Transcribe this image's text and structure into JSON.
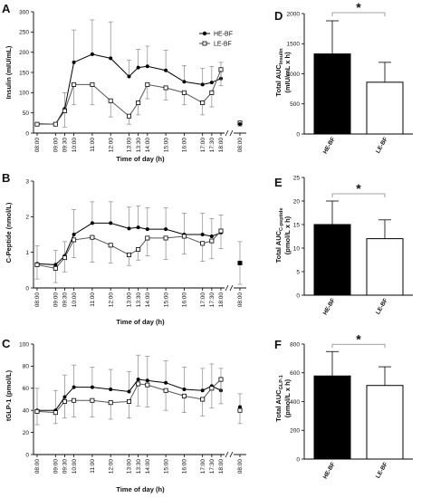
{
  "chart_data": [
    {
      "panel": "A",
      "type": "line",
      "xlabel": "Time of day (h)",
      "ylabel": "Insulin (mIU/mL)",
      "ylim": [
        0,
        300
      ],
      "yticks": [
        0,
        50,
        100,
        150,
        200,
        250,
        300
      ],
      "x": [
        "08:00",
        "09:00",
        "09:30",
        "10:00",
        "11:00",
        "12:00",
        "13:00",
        "13:30",
        "14:00",
        "15:00",
        "16:00",
        "17:00",
        "17:30",
        "18:00"
      ],
      "legend": [
        {
          "label": "HE-BF"
        },
        {
          "label": "LE-BF"
        }
      ],
      "series": [
        {
          "name": "HE-BF",
          "marker": "filled-circle",
          "values": [
            23,
            22,
            60,
            175,
            195,
            185,
            140,
            162,
            165,
            155,
            127,
            120,
            125,
            135
          ],
          "errors": [
            0,
            0,
            40,
            80,
            85,
            90,
            40,
            45,
            50,
            50,
            40,
            40,
            40,
            40
          ]
        },
        {
          "name": "LE-BF",
          "marker": "open-square",
          "values": [
            22,
            22,
            55,
            120,
            120,
            80,
            42,
            75,
            120,
            112,
            100,
            75,
            100,
            157
          ],
          "errors": [
            0,
            0,
            40,
            50,
            50,
            40,
            20,
            30,
            35,
            30,
            30,
            30,
            35,
            40
          ]
        }
      ],
      "post": [
        {
          "label": "08:00",
          "filled": 22,
          "open": 25,
          "error": 8
        }
      ]
    },
    {
      "panel": "B",
      "type": "line",
      "xlabel": "Time of day (h)",
      "ylabel": "C-Peptide (nmol/L)",
      "ylim": [
        0,
        3
      ],
      "yticks": [
        0,
        1,
        2,
        3
      ],
      "x": [
        "08:00",
        "09:00",
        "09:30",
        "10:00",
        "11:00",
        "12:00",
        "13:00",
        "13:30",
        "14:00",
        "15:00",
        "16:00",
        "17:00",
        "17:30",
        "18:00"
      ],
      "series": [
        {
          "name": "HE-BF",
          "marker": "filled-circle",
          "values": [
            0.68,
            0.65,
            0.9,
            1.5,
            1.82,
            1.82,
            1.67,
            1.7,
            1.65,
            1.65,
            1.5,
            1.5,
            1.45,
            1.55
          ],
          "errors": [
            0.5,
            0.4,
            0.4,
            0.7,
            0.6,
            0.6,
            0.6,
            0.6,
            0.6,
            0.6,
            0.6,
            0.6,
            0.5,
            0.5
          ]
        },
        {
          "name": "LE-BF",
          "marker": "open-square",
          "values": [
            0.65,
            0.55,
            0.85,
            1.35,
            1.42,
            1.2,
            0.93,
            1.08,
            1.4,
            1.4,
            1.45,
            1.25,
            1.32,
            1.6
          ],
          "errors": [
            0.4,
            0.4,
            0.4,
            0.5,
            0.7,
            0.5,
            0.3,
            0.3,
            0.5,
            0.6,
            0.5,
            0.5,
            0.5,
            0.5
          ]
        }
      ],
      "post": [
        {
          "label": "08:00",
          "filled": 0.7,
          "open": 0.7,
          "error": 0.6
        }
      ]
    },
    {
      "panel": "C",
      "type": "line",
      "xlabel": "Time of day (h)",
      "ylabel": "tGLP-1 (pmol/L)",
      "ylim": [
        0,
        100
      ],
      "yticks": [
        0,
        20,
        40,
        60,
        80,
        100
      ],
      "x": [
        "08:00",
        "09:00",
        "09:30",
        "10:00",
        "11:00",
        "12:00",
        "13:00",
        "13:30",
        "14:00",
        "15:00",
        "16:00",
        "17:00",
        "17:30",
        "18:00"
      ],
      "series": [
        {
          "name": "HE-BF",
          "marker": "filled-circle",
          "values": [
            40,
            40,
            52,
            61,
            61,
            59,
            57,
            68,
            67,
            65,
            59,
            58,
            62,
            58
          ],
          "errors": [
            20,
            18,
            20,
            20,
            18,
            18,
            18,
            22,
            22,
            20,
            20,
            20,
            20,
            20
          ]
        },
        {
          "name": "LE-BF",
          "marker": "open-square",
          "values": [
            39,
            38,
            48,
            49,
            49,
            47,
            48,
            64,
            63,
            58,
            53,
            50,
            60,
            68
          ],
          "errors": [
            12,
            10,
            15,
            15,
            15,
            15,
            15,
            20,
            20,
            18,
            15,
            15,
            18,
            22
          ]
        }
      ],
      "post": [
        {
          "label": "08:00",
          "filled": 43,
          "open": 40,
          "error": 12
        }
      ]
    },
    {
      "panel": "D",
      "type": "bar",
      "ylabel": "Total AUC_Insulin (mIU/mL x h)",
      "ylabel_main": "Total AUC",
      "ylabel_sub": "Insulin",
      "ylabel_line2": "(mIU/mL x h)",
      "ylim": [
        0,
        2000
      ],
      "yticks": [
        0,
        500,
        1000,
        1500,
        2000
      ],
      "categories": [
        "HE-BF",
        "LE-BF"
      ],
      "values": [
        1330,
        860
      ],
      "errors": [
        550,
        330
      ],
      "significance": "*"
    },
    {
      "panel": "E",
      "type": "bar",
      "ylabel": "Total AUC_C-peptide (pmol/L x h)",
      "ylabel_main": "Total AUC",
      "ylabel_sub": "C-peptide",
      "ylabel_line2": "(pmol/L x h)",
      "ylim": [
        0,
        25
      ],
      "yticks": [
        0,
        5,
        10,
        15,
        20,
        25
      ],
      "categories": [
        "HE-BF",
        "LE-BF"
      ],
      "values": [
        15,
        12
      ],
      "errors": [
        5,
        4
      ],
      "significance": "*"
    },
    {
      "panel": "F",
      "type": "bar",
      "ylabel": "Total AUC_GLP-1 (pmol/L x h)",
      "ylabel_main": "Total AUC",
      "ylabel_sub": "GLP-1",
      "ylabel_line2": "(pmol/L x h)",
      "ylim": [
        0,
        800
      ],
      "yticks": [
        0,
        200,
        400,
        600,
        800
      ],
      "categories": [
        "HE-BF",
        "LE-BF"
      ],
      "values": [
        578,
        512
      ],
      "errors": [
        170,
        130
      ],
      "significance": "*"
    }
  ]
}
